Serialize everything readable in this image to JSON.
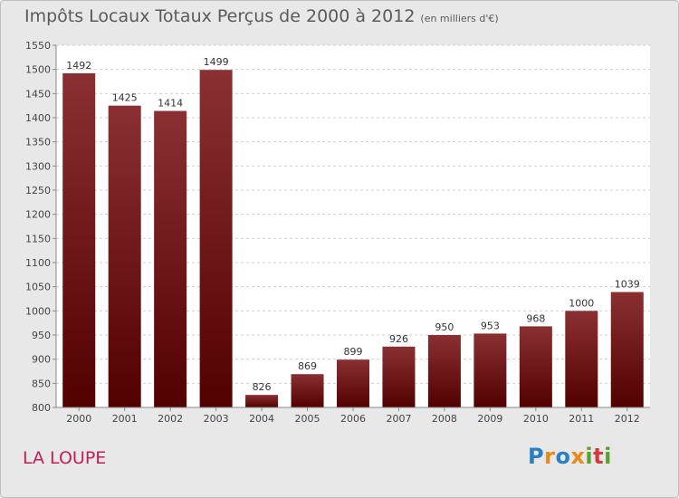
{
  "header": {
    "title": "Impôts Locaux Totaux Perçus de 2000 à 2012",
    "unit": "(en milliers d'€)"
  },
  "footer": {
    "place": "LA LOUPE",
    "logo": "Proxiti"
  },
  "colors": {
    "bar_top": "#8a3033",
    "bar_bottom": "#520000",
    "place": "#c21d5a"
  },
  "chart_data": {
    "type": "bar",
    "title": "Impôts Locaux Totaux Perçus de 2000 à 2012",
    "subtitle": "(en milliers d'€)",
    "xlabel": "",
    "ylabel": "",
    "categories": [
      "2000",
      "2001",
      "2002",
      "2003",
      "2004",
      "2005",
      "2006",
      "2007",
      "2008",
      "2009",
      "2010",
      "2011",
      "2012"
    ],
    "values": [
      1492,
      1425,
      1414,
      1499,
      826,
      869,
      899,
      926,
      950,
      953,
      968,
      1000,
      1039
    ],
    "ylim": [
      800,
      1550
    ],
    "yticks": [
      800,
      850,
      900,
      950,
      1000,
      1050,
      1100,
      1150,
      1200,
      1250,
      1300,
      1350,
      1400,
      1450,
      1500,
      1550
    ],
    "grid": true,
    "legend": "none"
  }
}
